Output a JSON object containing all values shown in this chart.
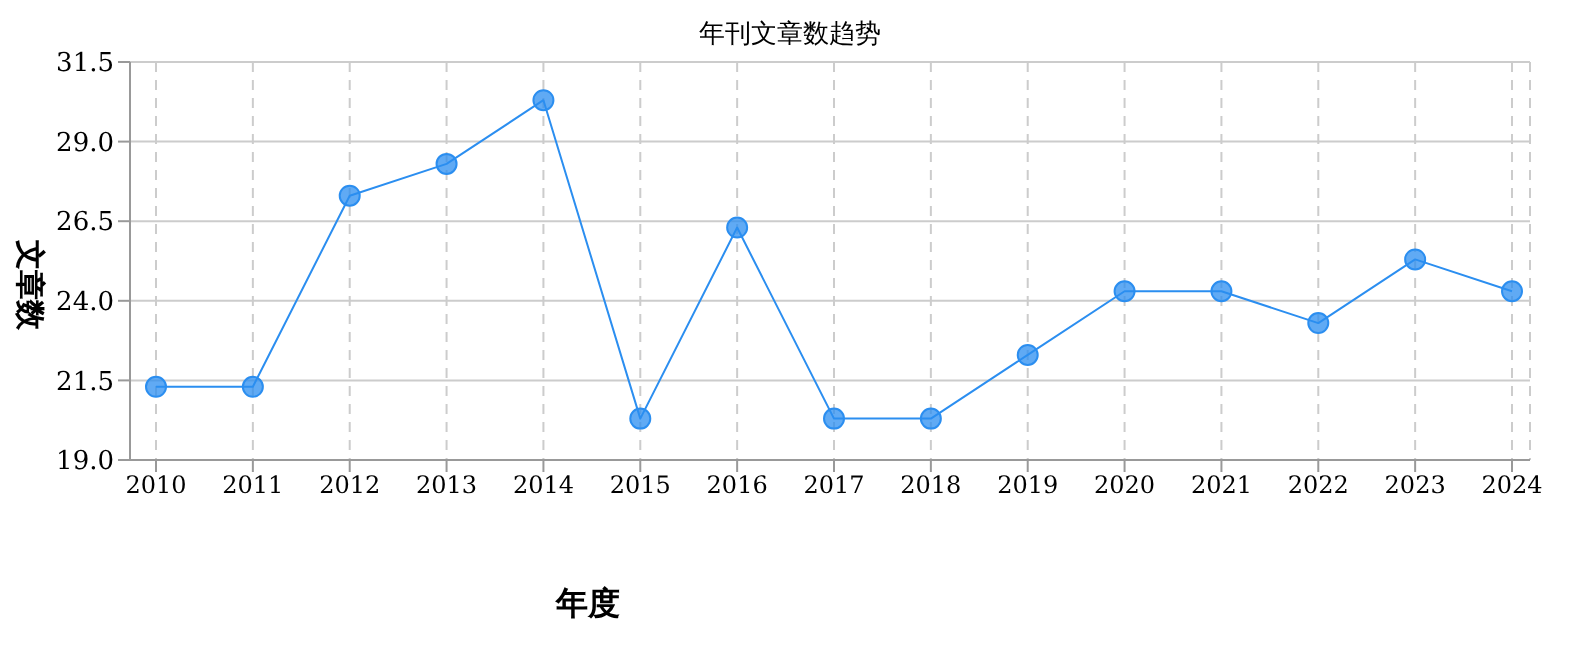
{
  "chart_data": {
    "type": "line",
    "title": "年刊文章数趋势",
    "xlabel": "年度",
    "ylabel": "文章数",
    "categories": [
      "2010",
      "2011",
      "2012",
      "2013",
      "2014",
      "2015",
      "2016",
      "2017",
      "2018",
      "2019",
      "2020",
      "2021",
      "2022",
      "2023",
      "2024"
    ],
    "series": [
      {
        "color": "#2b8ef0",
        "values": [
          21.3,
          21.3,
          27.3,
          28.3,
          30.3,
          20.3,
          26.3,
          20.3,
          20.3,
          22.3,
          24.3,
          24.3,
          23.3,
          25.3,
          24.3
        ]
      }
    ],
    "ylim": [
      19,
      31.5
    ],
    "yticks": [
      {
        "value": 19,
        "label": "19.0"
      },
      {
        "value": 21.5,
        "label": "21.5"
      },
      {
        "value": 24,
        "label": "24.0"
      },
      {
        "value": 26.5,
        "label": "26.5"
      },
      {
        "value": 29,
        "label": "29.0"
      },
      {
        "value": 31.5,
        "label": "31.5"
      }
    ],
    "grid": true,
    "marker": "circle",
    "line_style": "solid"
  }
}
